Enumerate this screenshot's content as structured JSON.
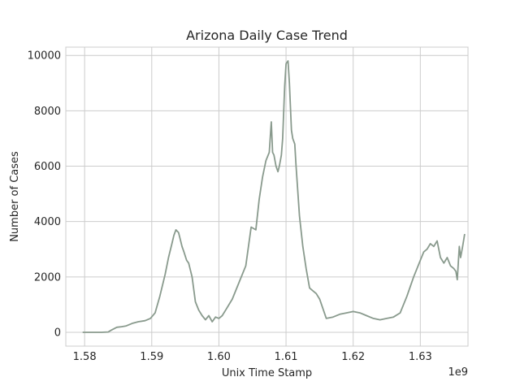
{
  "chart_data": {
    "type": "line",
    "title": "Arizona Daily Case Trend",
    "xlabel": "Unix Time Stamp",
    "ylabel": "Number of Cases",
    "x_offset_label": "1e9",
    "xlim": [
      1.5772,
      1.6371
    ],
    "ylim": [
      -500,
      10300
    ],
    "x_ticks": [
      1.58,
      1.59,
      1.6,
      1.61,
      1.62,
      1.63
    ],
    "x_tick_labels": [
      "1.58",
      "1.59",
      "1.60",
      "1.61",
      "1.62",
      "1.63"
    ],
    "y_ticks": [
      0,
      2000,
      4000,
      6000,
      8000,
      10000
    ],
    "y_tick_labels": [
      "0",
      "2000",
      "4000",
      "6000",
      "8000",
      "10000"
    ],
    "grid": true,
    "line_color": "#899a8d",
    "series": [
      {
        "x": [
          1.5797,
          1.5805,
          1.5815,
          1.5825,
          1.5835,
          1.584,
          1.5848,
          1.5855,
          1.5862,
          1.5872,
          1.588,
          1.589,
          1.5898,
          1.5905,
          1.5912,
          1.592,
          1.5925,
          1.593,
          1.5933,
          1.5936,
          1.594,
          1.5942,
          1.5945,
          1.5948,
          1.5952,
          1.5955,
          1.596,
          1.5965,
          1.597,
          1.5975,
          1.598,
          1.5985,
          1.599,
          1.5995,
          1.6,
          1.6005,
          1.601,
          1.602,
          1.603,
          1.604,
          1.6048,
          1.6055,
          1.606,
          1.6065,
          1.607,
          1.6075,
          1.6078,
          1.608,
          1.6082,
          1.6085,
          1.6088,
          1.609,
          1.6093,
          1.6095,
          1.6098,
          1.61,
          1.6103,
          1.6105,
          1.6108,
          1.611,
          1.6113,
          1.6115,
          1.612,
          1.6125,
          1.613,
          1.6135,
          1.614,
          1.6145,
          1.615,
          1.616,
          1.617,
          1.618,
          1.619,
          1.62,
          1.621,
          1.622,
          1.623,
          1.624,
          1.625,
          1.626,
          1.627,
          1.628,
          1.629,
          1.63,
          1.6305,
          1.631,
          1.6315,
          1.632,
          1.6325,
          1.633,
          1.6335,
          1.634,
          1.6345,
          1.635,
          1.6353,
          1.6355,
          1.6358,
          1.636,
          1.6363,
          1.6366
        ],
        "y": [
          0,
          0,
          0,
          0,
          10,
          80,
          180,
          200,
          230,
          330,
          380,
          420,
          500,
          700,
          1300,
          2100,
          2700,
          3200,
          3500,
          3700,
          3600,
          3400,
          3100,
          2900,
          2600,
          2500,
          2000,
          1100,
          800,
          600,
          450,
          600,
          380,
          550,
          500,
          600,
          800,
          1200,
          1800,
          2400,
          3800,
          3700,
          4800,
          5600,
          6200,
          6500,
          7600,
          6500,
          6400,
          6000,
          5800,
          6000,
          6400,
          7000,
          8900,
          9700,
          9800,
          9000,
          7300,
          7000,
          6800,
          6000,
          4200,
          3100,
          2300,
          1600,
          1500,
          1400,
          1200,
          500,
          550,
          650,
          700,
          750,
          700,
          600,
          500,
          450,
          500,
          550,
          700,
          1300,
          2000,
          2600,
          2900,
          3000,
          3200,
          3100,
          3300,
          2700,
          2500,
          2700,
          2400,
          2300,
          2200,
          1900,
          3100,
          2700,
          3100,
          3550
        ]
      }
    ]
  }
}
